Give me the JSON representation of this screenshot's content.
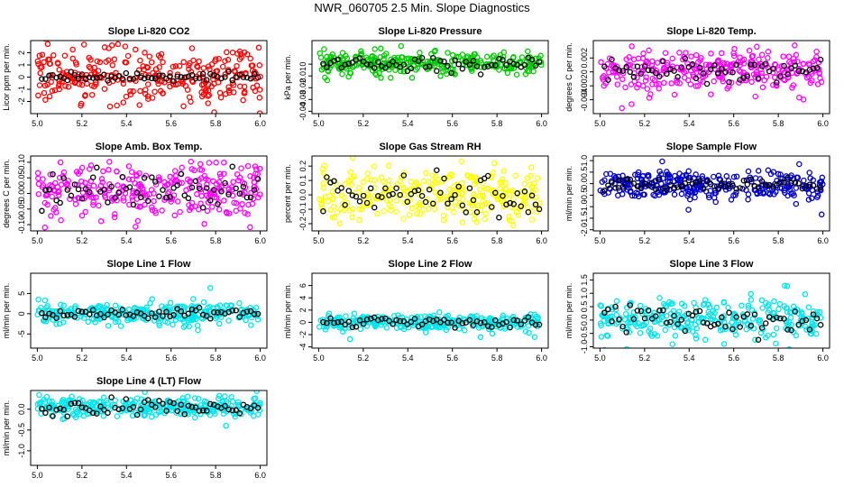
{
  "page_title": "NWR_060705  2.5 Min. Slope Diagnostics",
  "chart_data": [
    {
      "type": "scatter",
      "title": "Slope Li-820 CO2",
      "ylabel": "Licor ppm per min.",
      "xlim": [
        4.97,
        6.03
      ],
      "ylim": [
        -3,
        3
      ],
      "xticks": [
        "5.0",
        "5.2",
        "5.4",
        "5.6",
        "5.8",
        "6.0"
      ],
      "yticks": [
        -2,
        -1,
        0,
        1,
        2
      ],
      "yticklabels": [
        "-2",
        "-1",
        "0",
        "1",
        "2"
      ],
      "color": "#ff0000",
      "spread": 1.1,
      "center": 0.05,
      "black_spread": 0.15
    },
    {
      "type": "scatter",
      "title": "Slope Li-820 Pressure",
      "ylabel": "kPa per min.",
      "xlim": [
        4.97,
        6.03
      ],
      "ylim": [
        -0.042,
        0.02
      ],
      "xticks": [
        "5.0",
        "5.2",
        "5.4",
        "5.6",
        "5.8",
        "6.0"
      ],
      "yticks": [
        -0.04,
        -0.03,
        -0.02,
        -0.01,
        0
      ],
      "yticklabels": [
        "-0.04",
        "-0.03",
        "-0.02",
        "-0.01",
        "0"
      ],
      "color": "#00cc00",
      "spread": 0.005,
      "center": 0.001,
      "black_spread": 0.003
    },
    {
      "type": "scatter",
      "title": "Slope Li-820 Temp.",
      "ylabel": "degrees C per min.",
      "xlim": [
        4.97,
        6.03
      ],
      "ylim": [
        -0.006,
        0.0045
      ],
      "xticks": [
        "5.0",
        "5.2",
        "5.4",
        "5.6",
        "5.8",
        "6.0"
      ],
      "yticks": [
        -0.004,
        -0.002,
        0,
        0.002
      ],
      "yticklabels": [
        "-0.004",
        "-0.002",
        "0",
        "0.002"
      ],
      "color": "#ff00ff",
      "spread": 0.0014,
      "center": 0.0003,
      "black_spread": 0.0008
    },
    {
      "type": "scatter",
      "title": "Slope Amb. Box Temp.",
      "ylabel": "degrees C per min.",
      "xlim": [
        4.97,
        6.03
      ],
      "ylim": [
        -0.12,
        0.12
      ],
      "xticks": [
        "5.0",
        "5.2",
        "5.4",
        "5.6",
        "5.8",
        "6.0"
      ],
      "yticks": [
        -0.1,
        -0.05,
        0,
        0.05,
        0.1
      ],
      "yticklabels": [
        "-0.10",
        "-0.05",
        "0.00",
        "0.05",
        "0.10"
      ],
      "color": "#ff00ff",
      "spread": 0.045,
      "center": 0.01,
      "black_spread": 0.035
    },
    {
      "type": "scatter",
      "title": "Slope Gas Stream RH",
      "ylabel": "percent per min.",
      "xlim": [
        4.97,
        6.03
      ],
      "ylim": [
        -0.25,
        0.27
      ],
      "xticks": [
        "5.0",
        "5.2",
        "5.4",
        "5.6",
        "5.8",
        "6.0"
      ],
      "yticks": [
        -0.2,
        -0.1,
        0,
        0.1,
        0.2
      ],
      "yticklabels": [
        "-0.2",
        "-0.1",
        "0.0",
        "0.1",
        "0.2"
      ],
      "color": "#ffff00",
      "spread": 0.09,
      "center": 0.0,
      "black_spread": 0.07
    },
    {
      "type": "scatter",
      "title": "Slope Sample Flow",
      "ylabel": "ml/min per min.",
      "xlim": [
        4.97,
        6.03
      ],
      "ylim": [
        -2.05,
        1.2
      ],
      "xticks": [
        "5.0",
        "5.2",
        "5.4",
        "5.6",
        "5.8",
        "6.0"
      ],
      "yticks": [
        -2,
        -1.5,
        -1,
        -0.5,
        0,
        0.5,
        1
      ],
      "yticklabels": [
        "-2.0",
        "-1.5",
        "-1.0",
        "-0.5",
        "0.0",
        "0.5",
        "1.0"
      ],
      "color": "#0000cc",
      "spread": 0.3,
      "center": -0.05,
      "black_spread": 0.15
    },
    {
      "type": "scatter",
      "title": "Slope Line 1 Flow",
      "ylabel": "ml/min per min.",
      "xlim": [
        4.97,
        6.03
      ],
      "ylim": [
        -8.5,
        10
      ],
      "xticks": [
        "5.0",
        "5.2",
        "5.4",
        "5.6",
        "5.8",
        "6.0"
      ],
      "yticks": [
        -5,
        0,
        5
      ],
      "yticklabels": [
        "-5",
        "0",
        "5"
      ],
      "color": "#00e5ee",
      "spread": 1.3,
      "center": 0.0,
      "black_spread": 0.5
    },
    {
      "type": "scatter",
      "title": "Slope Line 2 Flow",
      "ylabel": "ml/min per min.",
      "xlim": [
        4.97,
        6.03
      ],
      "ylim": [
        -4.2,
        8
      ],
      "xticks": [
        "5.0",
        "5.2",
        "5.4",
        "5.6",
        "5.8",
        "6.0"
      ],
      "yticks": [
        -4,
        -2,
        0,
        2,
        4,
        6
      ],
      "yticklabels": [
        "-4",
        "-2",
        "0",
        "2",
        "4",
        "6"
      ],
      "color": "#00e5ee",
      "spread": 0.6,
      "center": 0.0,
      "black_spread": 0.4
    },
    {
      "type": "scatter",
      "title": "Slope Line 3 Flow",
      "ylabel": "ml/min per min.",
      "xlim": [
        4.97,
        6.03
      ],
      "ylim": [
        -1.05,
        1.75
      ],
      "xticks": [
        "5.0",
        "5.2",
        "5.4",
        "5.6",
        "5.8",
        "6.0"
      ],
      "yticks": [
        -1,
        -0.5,
        0,
        0.5,
        1,
        1.5
      ],
      "yticklabels": [
        "-1.0",
        "-0.5",
        "0.0",
        "0.5",
        "1.0",
        "1.5"
      ],
      "color": "#00e5ee",
      "spread": 0.4,
      "center": 0.05,
      "black_spread": 0.25
    },
    {
      "type": "scatter",
      "title": "Slope Line 4 (LT) Flow",
      "ylabel": "ml/min per min.",
      "xlim": [
        4.97,
        6.03
      ],
      "ylim": [
        -1.35,
        0.45
      ],
      "xticks": [
        "5.0",
        "5.2",
        "5.4",
        "5.6",
        "5.8",
        "6.0"
      ],
      "yticks": [
        -1,
        -0.5,
        0
      ],
      "yticklabels": [
        "-1.0",
        "-0.5",
        "0.0"
      ],
      "color": "#00e5ee",
      "spread": 0.12,
      "center": 0.05,
      "black_spread": 0.1
    }
  ]
}
